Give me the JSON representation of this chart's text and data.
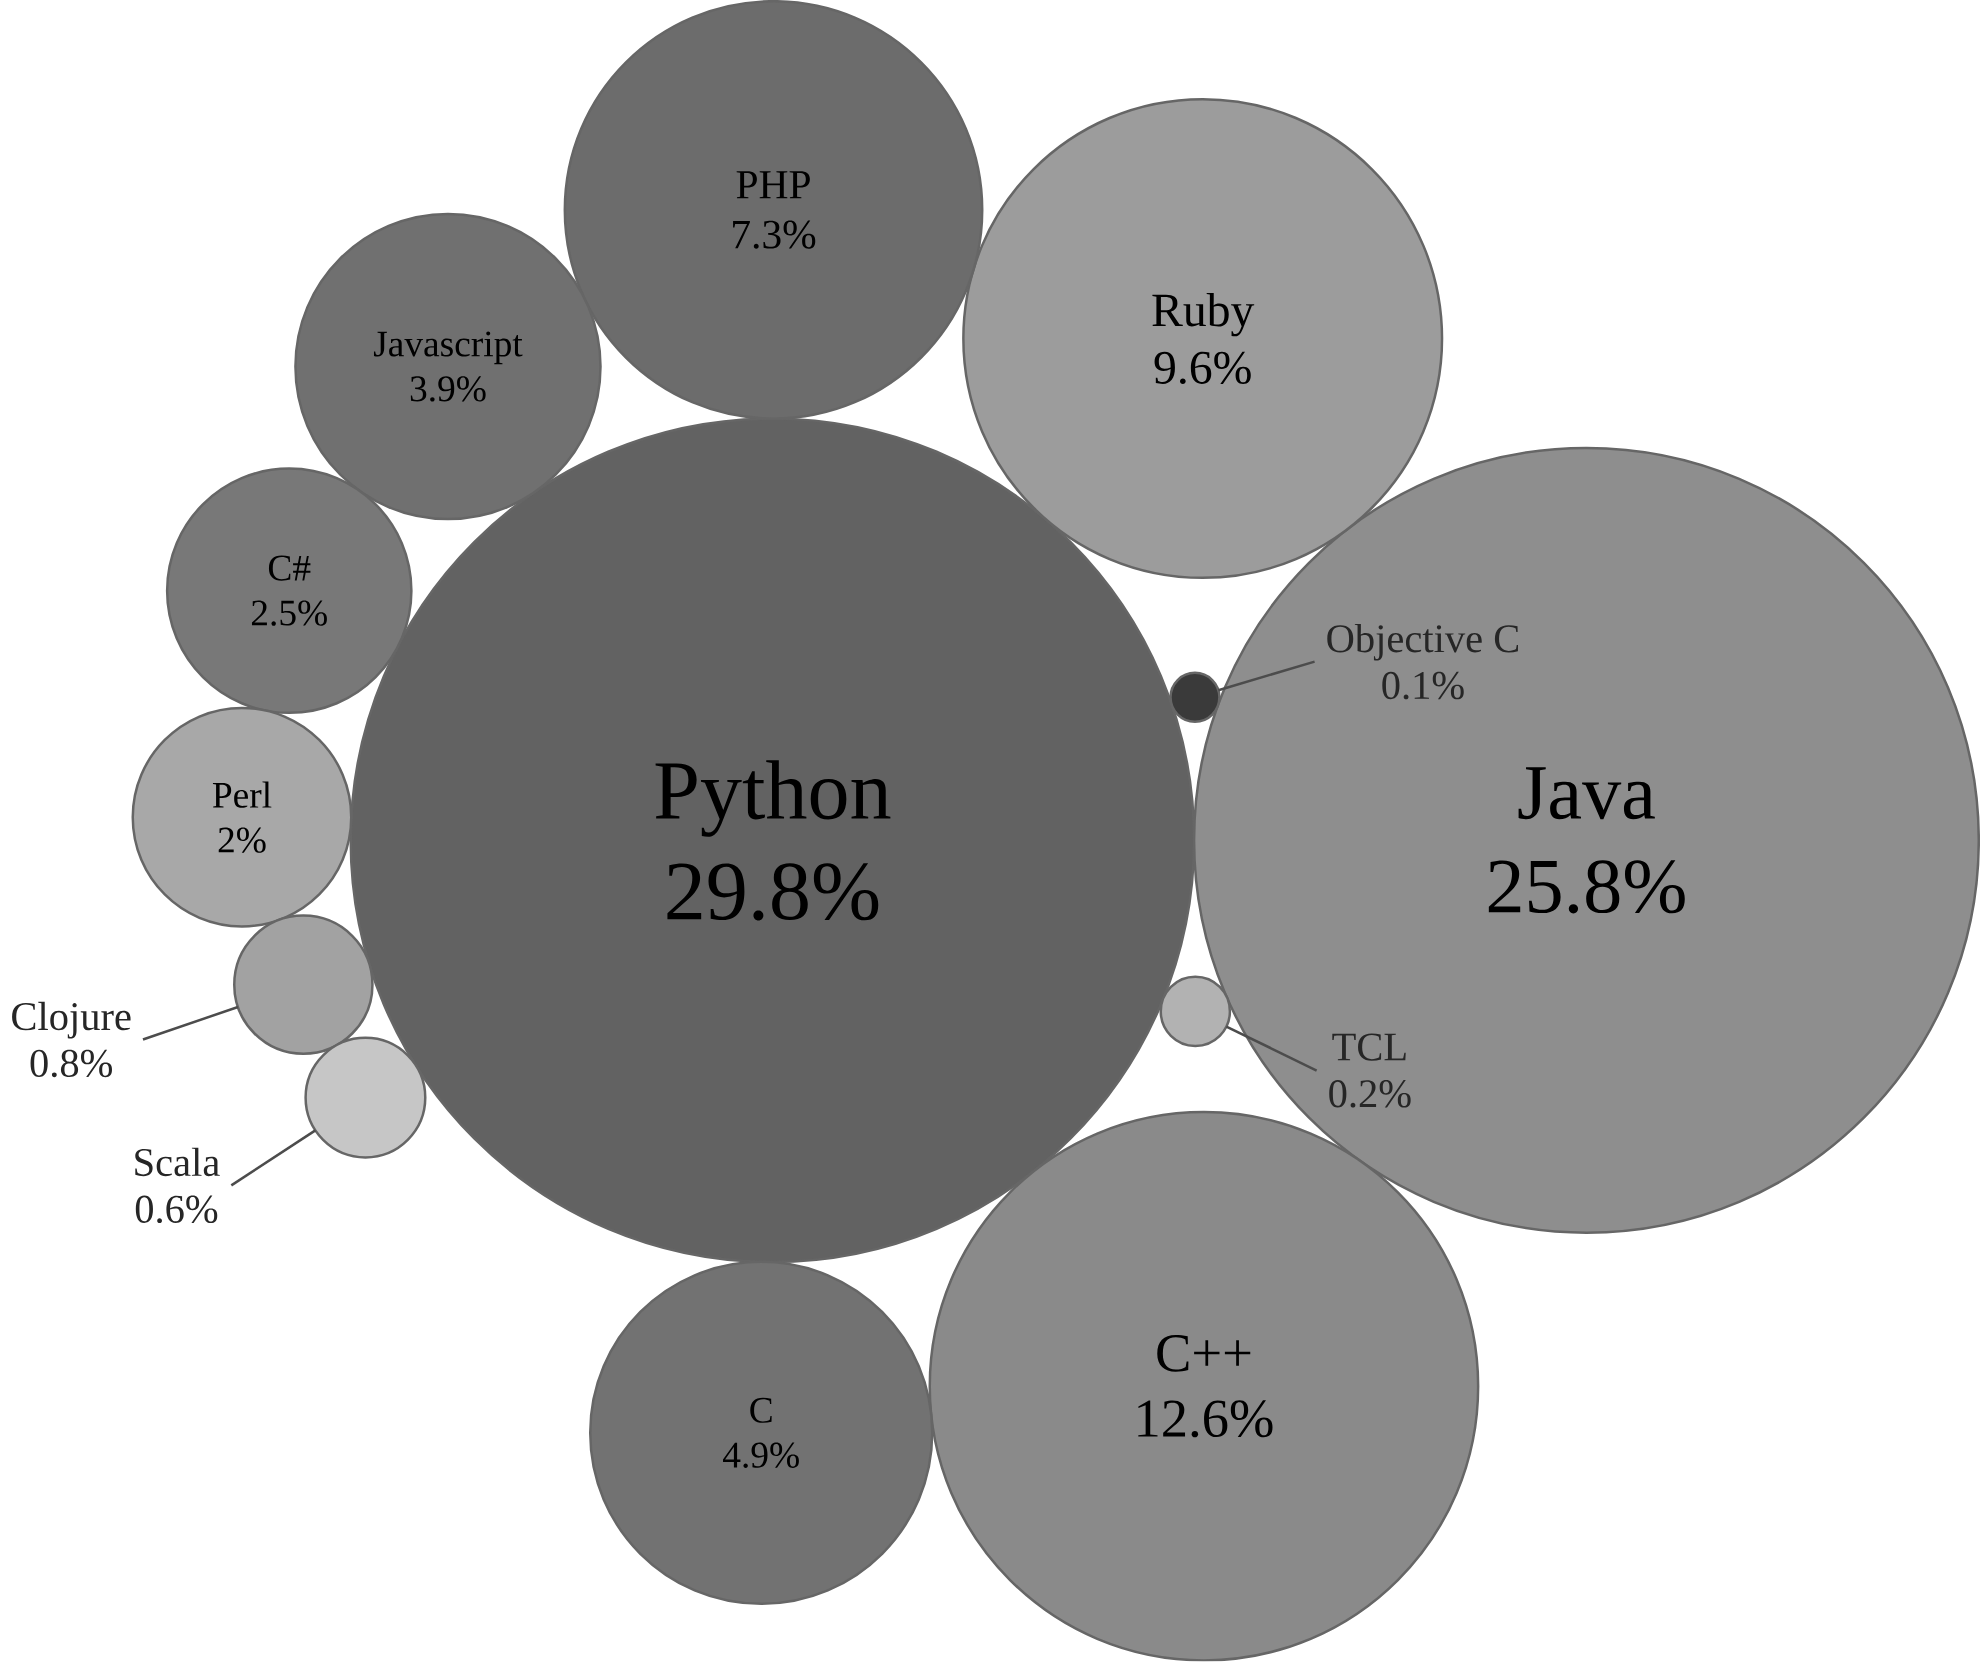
{
  "chart_data": {
    "type": "other",
    "categories": [
      "Python",
      "Java",
      "C++",
      "Ruby",
      "PHP",
      "C",
      "Javascript",
      "C#",
      "Perl",
      "Clojure",
      "Scala",
      "TCL",
      "Objective C"
    ],
    "values": [
      29.8,
      25.8,
      12.6,
      9.6,
      7.3,
      4.9,
      3.9,
      2.5,
      2,
      0.8,
      0.6,
      0.2,
      0.1
    ],
    "value_labels": [
      "29.8%",
      "25.8%",
      "12.6%",
      "9.6%",
      "7.3%",
      "4.9%",
      "3.9%",
      "2.5%",
      "2%",
      "0.8%",
      "0.6%",
      "0.2%",
      "0.1%"
    ],
    "colors": [
      "#626262",
      "#8e8e8e",
      "#8a8a8a",
      "#9c9c9c",
      "#6c6c6c",
      "#727272",
      "#707070",
      "#787878",
      "#a8a8a8",
      "#a2a2a2",
      "#c6c6c6",
      "#b2b2b2",
      "#3a3a3a"
    ]
  }
}
